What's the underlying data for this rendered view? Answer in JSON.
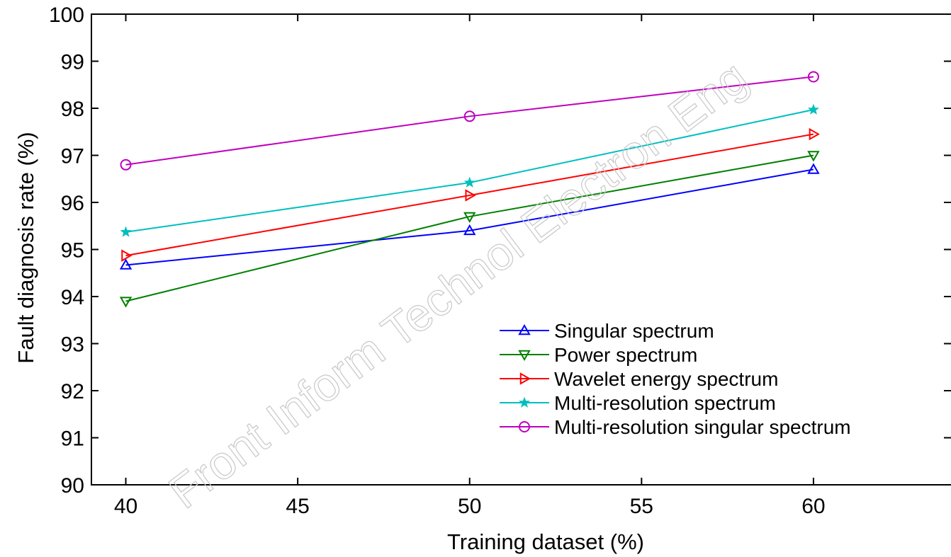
{
  "watermark": "Front Inform Technol Electron Eng",
  "chart_data": {
    "type": "line",
    "title": "",
    "xlabel": "Training dataset (%)",
    "ylabel": "Fault diagnosis rate (%)",
    "xlim": [
      39,
      64
    ],
    "ylim": [
      90,
      100
    ],
    "x_ticks": [
      40,
      45,
      50,
      55,
      60
    ],
    "y_ticks": [
      90,
      91,
      92,
      93,
      94,
      95,
      96,
      97,
      98,
      99,
      100
    ],
    "x": [
      40,
      50,
      60
    ],
    "grid": false,
    "legend_position": "lower-right",
    "series": [
      {
        "name": "Singular spectrum",
        "values": [
          94.67,
          95.4,
          96.7
        ],
        "color": "#0000ff",
        "marker": "triangle-up"
      },
      {
        "name": "Power spectrum",
        "values": [
          93.9,
          95.7,
          97.0
        ],
        "color": "#008000",
        "marker": "triangle-down"
      },
      {
        "name": "Wavelet energy spectrum",
        "values": [
          94.87,
          96.15,
          97.45
        ],
        "color": "#ff0000",
        "marker": "triangle-right"
      },
      {
        "name": "Multi-resolution spectrum",
        "values": [
          95.37,
          96.42,
          97.97
        ],
        "color": "#00bfbf",
        "marker": "star"
      },
      {
        "name": "Multi-resolution singular spectrum",
        "values": [
          96.8,
          97.83,
          98.67
        ],
        "color": "#bf00bf",
        "marker": "circle"
      }
    ]
  }
}
